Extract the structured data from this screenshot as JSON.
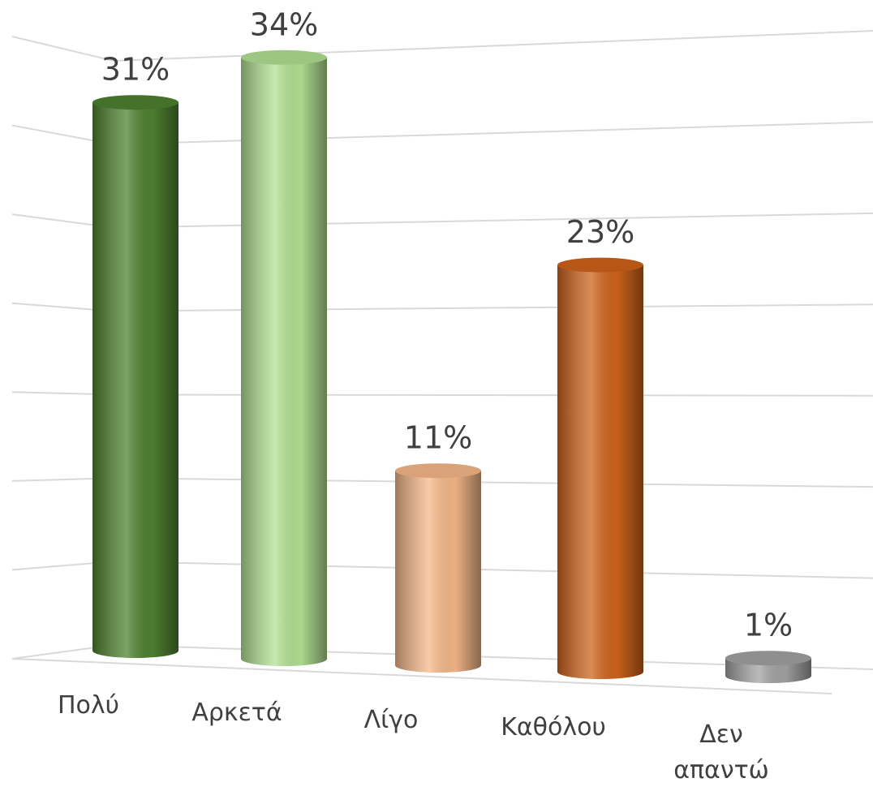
{
  "chart_data": {
    "type": "bar3d",
    "categories": [
      "Πολύ",
      "Αρκετά",
      "Λίγο",
      "Καθόλου",
      "Δεν απαντώ"
    ],
    "values": [
      31,
      34,
      11,
      23,
      1
    ],
    "value_labels": [
      "31%",
      "34%",
      "11%",
      "23%",
      "1%"
    ],
    "colors": [
      "#4f8230",
      "#b3e294",
      "#f7b98a",
      "#d0641c",
      "#a3a3a3"
    ],
    "ylim": [
      0,
      35
    ],
    "yticks": [
      0,
      5,
      10,
      15,
      20,
      25,
      30,
      35
    ],
    "grid": true
  }
}
